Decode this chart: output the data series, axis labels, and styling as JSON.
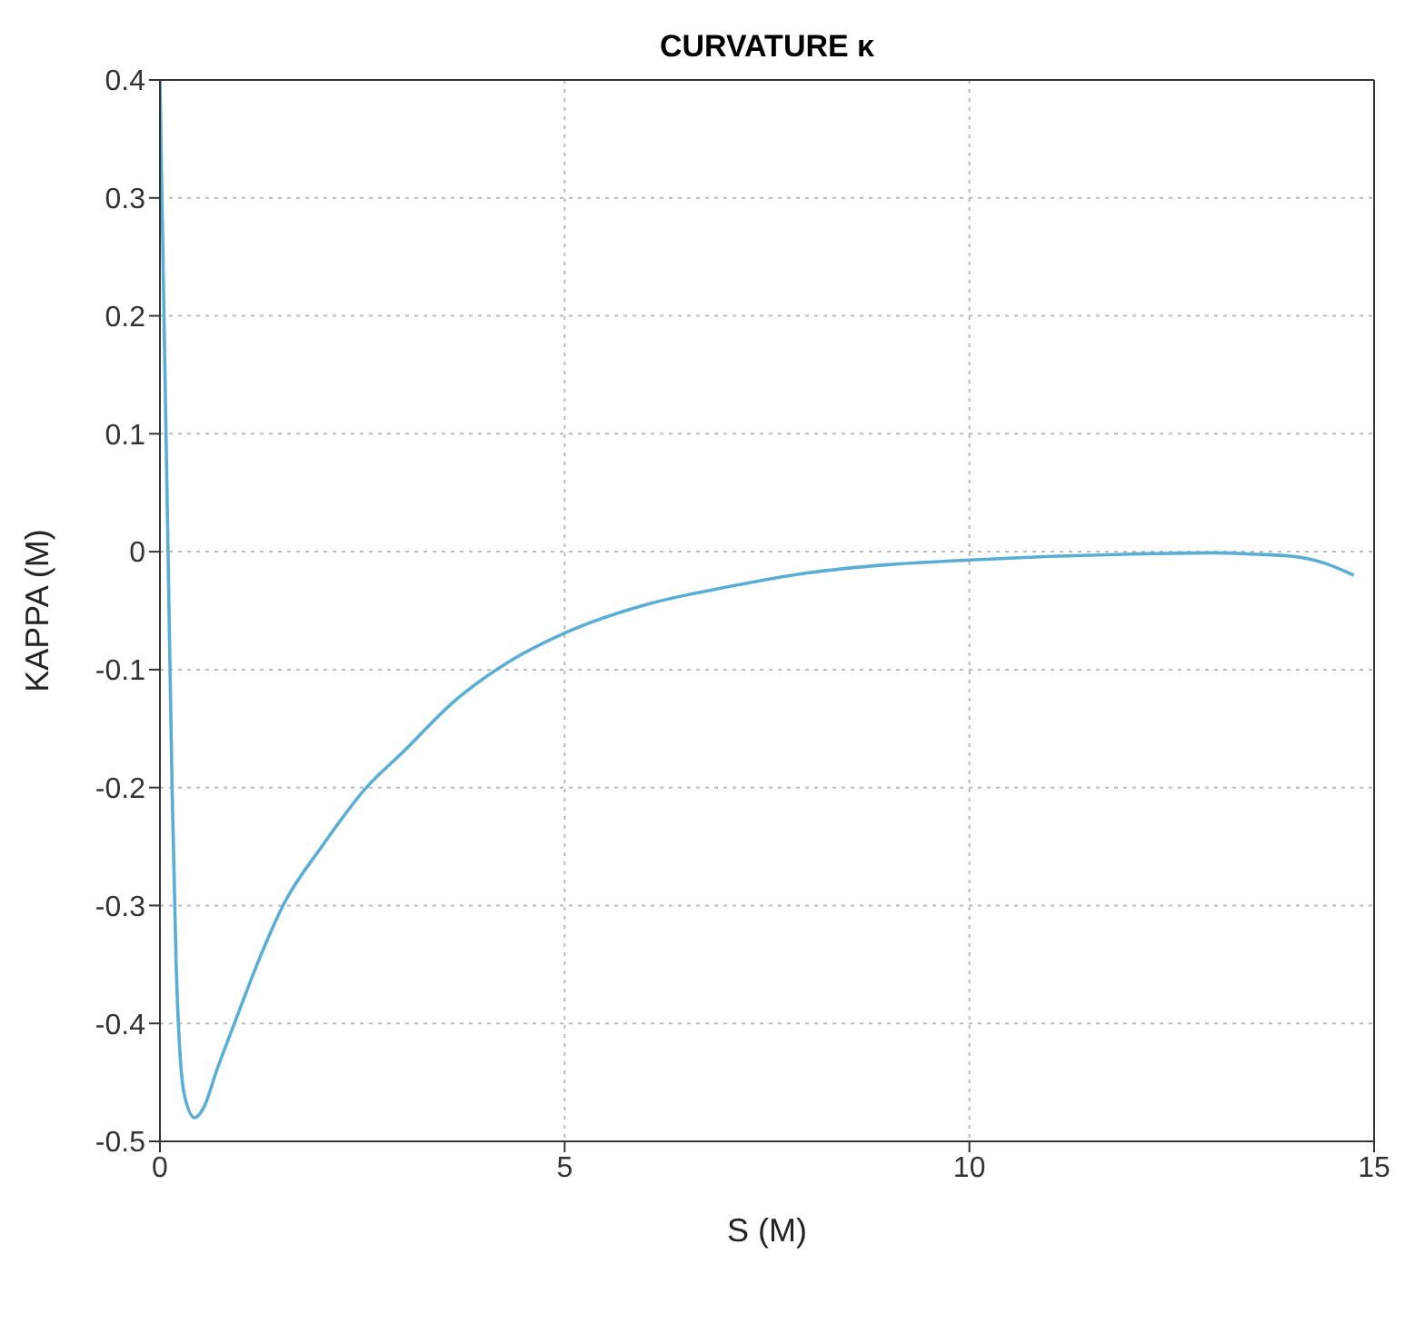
{
  "chart_data": {
    "type": "line",
    "title": "CURVATURE κ",
    "xlabel": "S (M)",
    "ylabel": "KAPPA (M)",
    "x": [
      0,
      0.05,
      0.1,
      0.15,
      0.2,
      0.3,
      0.43,
      0.55,
      0.7,
      0.92,
      1.2,
      1.52,
      2,
      2.55,
      3,
      3.65,
      4.32,
      5,
      6,
      7,
      8,
      9,
      10,
      11,
      12,
      13,
      13.5,
      14,
      14.4,
      14.75
    ],
    "series": [
      {
        "color": "#5aaed6",
        "values": [
          0.4,
          0.2,
          0,
          -0.2,
          -0.35,
          -0.46,
          -0.48,
          -0.47,
          -0.44,
          -0.4,
          -0.35,
          -0.3,
          -0.25,
          -0.2,
          -0.17,
          -0.126,
          -0.093,
          -0.069,
          -0.045,
          -0.03,
          -0.018,
          -0.011,
          -0.007,
          -0.004,
          -0.002,
          -0.001,
          -0.002,
          -0.004,
          -0.01,
          -0.02
        ]
      }
    ],
    "xlim": [
      0,
      15
    ],
    "xticks": [
      0,
      5,
      10,
      15
    ],
    "ylim": [
      -0.5,
      0.4
    ],
    "yticks": [
      -0.5,
      -0.4,
      -0.3,
      -0.2,
      -0.1,
      0,
      0.1,
      0.2,
      0.3,
      0.4
    ],
    "grid": true,
    "marker": "none",
    "line_style": "solid",
    "legend": false
  }
}
